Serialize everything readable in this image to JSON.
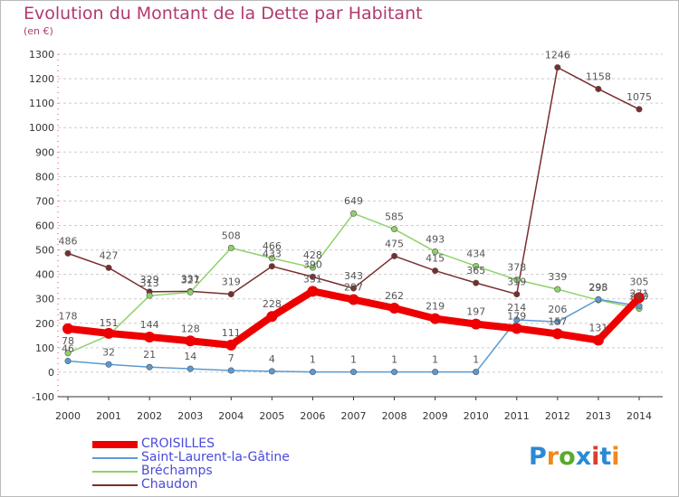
{
  "header": {
    "title": "Evolution du Montant de la Dette par Habitant",
    "subtitle": "(en €)"
  },
  "logo": {
    "text": "Proxiti",
    "letters": [
      "P",
      "r",
      "o",
      "x",
      "i",
      "t",
      "i"
    ],
    "colors": [
      "#2a8ad4",
      "#f08a1c",
      "#5aaa2a",
      "#2a8ad4",
      "#e03c2a",
      "#2a8ad4",
      "#f08a1c"
    ]
  },
  "colors": {
    "title": "#b03a6e",
    "axis_labels": "#333333",
    "grid": "#cccccc",
    "value_labels": "#555555",
    "legend_text": "#4a4adc"
  },
  "chart_data": {
    "type": "line",
    "x": [
      "2000",
      "2001",
      "2002",
      "2003",
      "2004",
      "2005",
      "2006",
      "2007",
      "2008",
      "2009",
      "2010",
      "2011",
      "2012",
      "2013",
      "2014"
    ],
    "ylim": [
      -100,
      1300
    ],
    "yticks": [
      "-100",
      "0",
      "100",
      "200",
      "300",
      "400",
      "500",
      "600",
      "700",
      "800",
      "900",
      "1000",
      "1100",
      "1200",
      "1300"
    ],
    "grid": "horizontal dashed",
    "legend": "bottom-left",
    "series": [
      {
        "name": "CROISILLES",
        "color": "#ee0000",
        "thick": true,
        "values": [
          178,
          159,
          144,
          128,
          111,
          228,
          331,
          297,
          262,
          219,
          197,
          179,
          157,
          131,
          305
        ],
        "labels": [
          "178",
          "",
          "144",
          "128",
          "111",
          "228",
          "331",
          "297",
          "262",
          "219",
          "197",
          "179",
          "157",
          "131",
          ""
        ]
      },
      {
        "name": "Saint-Laurent-la-Gâtine",
        "color": "#5a9ad2",
        "thick": false,
        "values": [
          46,
          32,
          21,
          14,
          7,
          4,
          1,
          1,
          1,
          1,
          1,
          214,
          206,
          298,
          271
        ],
        "labels": [
          "46",
          "32",
          "21",
          "14",
          "7",
          "4",
          "1",
          "1",
          "1",
          "1",
          "1",
          "214",
          "206",
          "298",
          "271"
        ]
      },
      {
        "name": "Bréchamps",
        "color": "#8ed26a",
        "thick": false,
        "values": [
          78,
          151,
          313,
          327,
          508,
          466,
          428,
          649,
          585,
          493,
          434,
          378,
          339,
          295,
          260
        ],
        "labels": [
          "78",
          "151",
          "313",
          "327",
          "508",
          "466",
          "428",
          "649",
          "585",
          "493",
          "434",
          "378",
          "339",
          "295",
          "260"
        ]
      },
      {
        "name": "Chaudon",
        "color": "#7a2d2d",
        "thick": false,
        "values": [
          486,
          427,
          329,
          331,
          319,
          433,
          390,
          343,
          475,
          415,
          365,
          319,
          1246,
          1158,
          1075
        ],
        "labels": [
          "486",
          "427",
          "329",
          "331",
          "319",
          "433",
          "390",
          "343",
          "475",
          "415",
          "365",
          "319",
          "1246",
          "1158",
          "1075"
        ]
      }
    ],
    "extra_labels": [
      {
        "series": 0,
        "index": 14,
        "text": "305"
      }
    ]
  }
}
